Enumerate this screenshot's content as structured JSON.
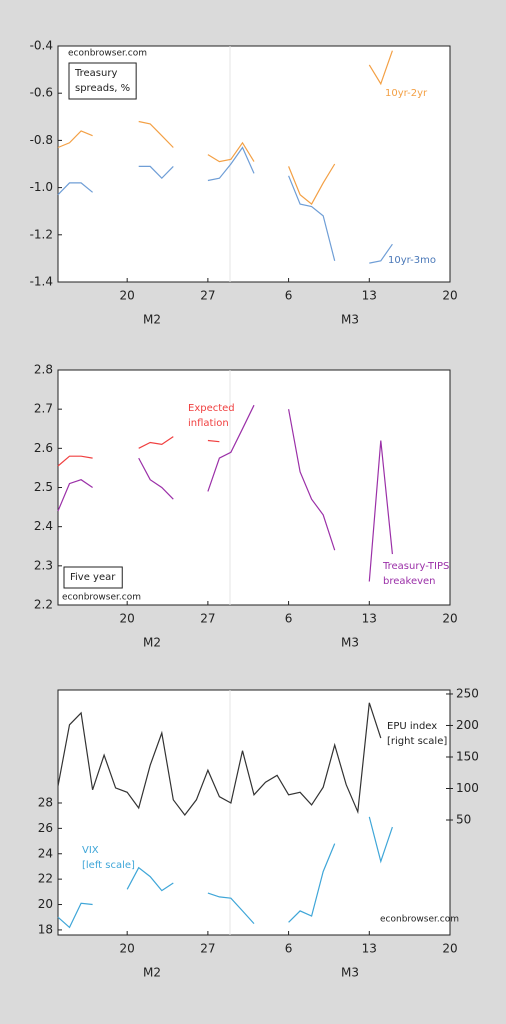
{
  "chart_data": [
    {
      "type": "line",
      "x": [
        45,
        46,
        47,
        48,
        49,
        50,
        51,
        52,
        53,
        54,
        55,
        56,
        57,
        58,
        59,
        60,
        61,
        62,
        63,
        64,
        65,
        66,
        67,
        68,
        69,
        70,
        71,
        72,
        73,
        74
      ],
      "xlim": [
        45,
        79
      ],
      "xticks": [
        {
          "value": 51,
          "label": "20"
        },
        {
          "value": 58,
          "label": "27"
        },
        {
          "value": 65,
          "label": "6"
        },
        {
          "value": 72,
          "label": "13"
        },
        {
          "value": 79,
          "label": "20"
        }
      ],
      "x_group_labels": [
        "M2",
        "M3"
      ],
      "ylim": [
        -1.4,
        -0.4
      ],
      "yticks": [
        -1.4,
        -1.2,
        {
          "value": -1.0,
          "label": "-1.0"
        },
        -0.8,
        -0.6,
        -0.4
      ],
      "series": [
        {
          "name": "10yr-2yr",
          "color": "#f3a045",
          "values": [
            -0.83,
            -0.81,
            -0.76,
            -0.78,
            null,
            null,
            null,
            -0.72,
            -0.73,
            -0.78,
            -0.83,
            null,
            null,
            -0.86,
            -0.89,
            -0.88,
            -0.81,
            -0.89,
            null,
            null,
            -0.91,
            -1.03,
            -1.07,
            -0.98,
            -0.9,
            null,
            null,
            -0.48,
            -0.56,
            -0.42
          ]
        },
        {
          "name": "10yr-3mo",
          "color": "#6f9ed6",
          "values": [
            -1.03,
            -0.98,
            -0.98,
            -1.02,
            null,
            null,
            null,
            -0.91,
            -0.91,
            -0.96,
            -0.91,
            null,
            null,
            -0.97,
            -0.96,
            -0.9,
            -0.83,
            -0.94,
            null,
            null,
            -0.95,
            -1.07,
            -1.08,
            -1.12,
            -1.31,
            null,
            null,
            -1.32,
            -1.31,
            -1.24
          ]
        }
      ],
      "annotations": [
        {
          "lines": [
            "econbrowser.com"
          ]
        },
        {
          "lines": [
            "Treasury",
            "spreads, %"
          ],
          "boxed": true
        },
        {
          "lines": [
            "10yr-2yr"
          ],
          "color": "#f3a045"
        },
        {
          "lines": [
            "10yr-3mo"
          ],
          "color": "#4a78b8"
        }
      ]
    },
    {
      "type": "line",
      "x": [
        45,
        46,
        47,
        48,
        49,
        50,
        51,
        52,
        53,
        54,
        55,
        56,
        57,
        58,
        59,
        60,
        61,
        62,
        63,
        64,
        65,
        66,
        67,
        68,
        69,
        70,
        71,
        72,
        73,
        74
      ],
      "xlim": [
        45,
        79
      ],
      "xticks": [
        {
          "value": 51,
          "label": "20"
        },
        {
          "value": 58,
          "label": "27"
        },
        {
          "value": 65,
          "label": "6"
        },
        {
          "value": 72,
          "label": "13"
        },
        {
          "value": 79,
          "label": "20"
        }
      ],
      "x_group_labels": [
        "M2",
        "M3"
      ],
      "ylim": [
        2.2,
        2.8
      ],
      "yticks": [
        2.2,
        2.3,
        2.4,
        2.5,
        2.6,
        2.7,
        2.8
      ],
      "series": [
        {
          "name": "Expected inflation",
          "color": "#f04040",
          "values": [
            2.555,
            2.58,
            2.58,
            2.575,
            null,
            null,
            null,
            2.6,
            2.615,
            2.61,
            2.63,
            null,
            null,
            2.62,
            2.617,
            null,
            null,
            null,
            null,
            null,
            null,
            null,
            null,
            null,
            null,
            null,
            null,
            null,
            null,
            null
          ]
        },
        {
          "name": "Treasury-TIPS breakeven",
          "color": "#9b30a8",
          "values": [
            2.44,
            2.51,
            2.52,
            2.5,
            null,
            null,
            null,
            2.575,
            2.52,
            2.5,
            2.47,
            null,
            null,
            2.49,
            2.575,
            2.59,
            2.65,
            2.71,
            null,
            null,
            2.7,
            2.54,
            2.47,
            2.43,
            2.34,
            null,
            null,
            2.26,
            2.62,
            2.33
          ]
        }
      ],
      "annotations": [
        {
          "lines": [
            "Expected",
            "inflation"
          ],
          "color": "#f04040"
        },
        {
          "lines": [
            "Five year"
          ],
          "boxed": true
        },
        {
          "lines": [
            "econbrowser.com"
          ]
        },
        {
          "lines": [
            "Treasury-TIPS",
            "breakeven"
          ],
          "color": "#9b30a8"
        }
      ]
    },
    {
      "type": "line",
      "x": [
        45,
        46,
        47,
        48,
        49,
        50,
        51,
        52,
        53,
        54,
        55,
        56,
        57,
        58,
        59,
        60,
        61,
        62,
        63,
        64,
        65,
        66,
        67,
        68,
        69,
        70,
        71,
        72,
        73,
        74
      ],
      "xlim": [
        45,
        79
      ],
      "xticks": [
        {
          "value": 51,
          "label": "20"
        },
        {
          "value": 58,
          "label": "27"
        },
        {
          "value": 65,
          "label": "6"
        },
        {
          "value": 72,
          "label": "13"
        },
        {
          "value": 79,
          "label": "20"
        }
      ],
      "x_group_labels": [
        "M2",
        "M3"
      ],
      "ylim": [
        17.6,
        36.9
      ],
      "yticks": [
        18,
        20,
        22,
        24,
        26,
        28
      ],
      "y2lim": [
        -132.5,
        256.3
      ],
      "y2ticks": [
        50,
        100,
        150,
        200,
        250
      ],
      "series": [
        {
          "name": "EPU index",
          "color": "#333333",
          "axis": "y2",
          "values": [
            104,
            201,
            220,
            98,
            153,
            101,
            94,
            69,
            137,
            188,
            82,
            58,
            82,
            129,
            87,
            77,
            160,
            90,
            110,
            121,
            90,
            94,
            74,
            102,
            169,
            106,
            63,
            236,
            180,
            null
          ]
        },
        {
          "name": "VIX",
          "color": "#3fa6d8",
          "values": [
            19.0,
            18.2,
            20.1,
            20.0,
            null,
            null,
            21.2,
            22.9,
            22.2,
            21.1,
            21.7,
            null,
            null,
            20.9,
            20.6,
            20.5,
            19.5,
            18.5,
            null,
            null,
            18.6,
            19.5,
            19.1,
            22.6,
            24.8,
            null,
            null,
            26.9,
            23.4,
            26.1
          ]
        }
      ],
      "annotations": [
        {
          "lines": [
            "EPU index",
            "[right scale]"
          ]
        },
        {
          "lines": [
            "VIX",
            "[left scale]"
          ],
          "color": "#3fa6d8"
        },
        {
          "lines": [
            "econbrowser.com"
          ]
        }
      ]
    }
  ]
}
